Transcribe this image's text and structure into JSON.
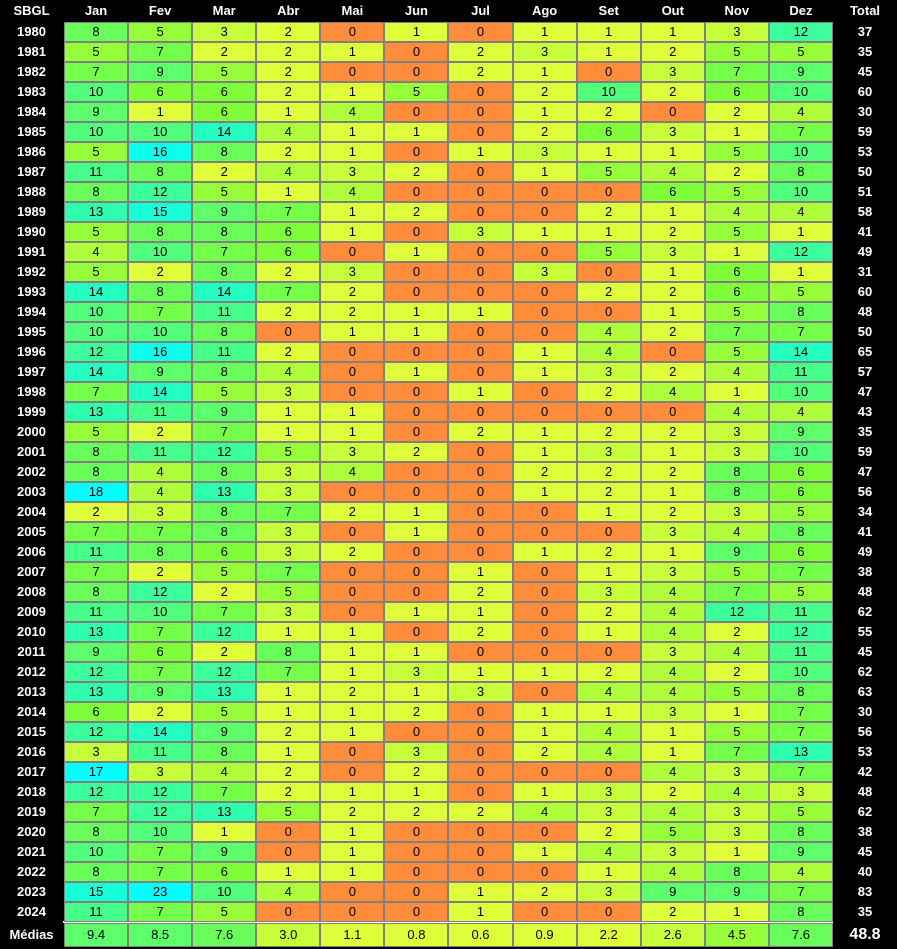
{
  "chart_data": {
    "type": "heatmap",
    "corner_label": "SBGL",
    "months": [
      "Jan",
      "Fev",
      "Mar",
      "Abr",
      "Mai",
      "Jun",
      "Jul",
      "Ago",
      "Set",
      "Out",
      "Nov",
      "Dez"
    ],
    "total_label": "Total",
    "years": [
      "1980",
      "1981",
      "1982",
      "1983",
      "1984",
      "1985",
      "1986",
      "1987",
      "1988",
      "1989",
      "1990",
      "1991",
      "1992",
      "1993",
      "1994",
      "1995",
      "1996",
      "1997",
      "1998",
      "1999",
      "2000",
      "2001",
      "2002",
      "2003",
      "2004",
      "2005",
      "2006",
      "2007",
      "2008",
      "2009",
      "2010",
      "2011",
      "2012",
      "2013",
      "2014",
      "2015",
      "2016",
      "2017",
      "2018",
      "2019",
      "2020",
      "2021",
      "2022",
      "2023",
      "2024"
    ],
    "values": [
      [
        8,
        5,
        3,
        2,
        0,
        1,
        0,
        1,
        1,
        1,
        3,
        12
      ],
      [
        5,
        7,
        2,
        2,
        1,
        0,
        2,
        3,
        1,
        2,
        5,
        5
      ],
      [
        7,
        9,
        5,
        2,
        0,
        0,
        2,
        1,
        0,
        3,
        7,
        9
      ],
      [
        10,
        6,
        6,
        2,
        1,
        5,
        0,
        2,
        10,
        2,
        6,
        10
      ],
      [
        9,
        1,
        6,
        1,
        4,
        0,
        0,
        1,
        2,
        0,
        2,
        4
      ],
      [
        10,
        10,
        14,
        4,
        1,
        1,
        0,
        2,
        6,
        3,
        1,
        7
      ],
      [
        5,
        16,
        8,
        2,
        1,
        0,
        1,
        3,
        1,
        1,
        5,
        10
      ],
      [
        11,
        8,
        2,
        4,
        3,
        2,
        0,
        1,
        5,
        4,
        2,
        8
      ],
      [
        8,
        12,
        5,
        1,
        4,
        0,
        0,
        0,
        0,
        6,
        5,
        10
      ],
      [
        13,
        15,
        9,
        7,
        1,
        2,
        0,
        0,
        2,
        1,
        4,
        4
      ],
      [
        5,
        8,
        8,
        6,
        1,
        0,
        3,
        1,
        1,
        2,
        5,
        1
      ],
      [
        4,
        10,
        7,
        6,
        0,
        1,
        0,
        0,
        5,
        3,
        1,
        12
      ],
      [
        5,
        2,
        8,
        2,
        3,
        0,
        0,
        3,
        0,
        1,
        6,
        1
      ],
      [
        14,
        8,
        14,
        7,
        2,
        0,
        0,
        0,
        2,
        2,
        6,
        5
      ],
      [
        10,
        7,
        11,
        2,
        2,
        1,
        1,
        0,
        0,
        1,
        5,
        8
      ],
      [
        10,
        10,
        8,
        0,
        1,
        1,
        0,
        0,
        4,
        2,
        7,
        7
      ],
      [
        12,
        16,
        11,
        2,
        0,
        0,
        0,
        1,
        4,
        0,
        5,
        14
      ],
      [
        14,
        9,
        8,
        4,
        0,
        1,
        0,
        1,
        3,
        2,
        4,
        11
      ],
      [
        7,
        14,
        5,
        3,
        0,
        0,
        1,
        0,
        2,
        4,
        1,
        10
      ],
      [
        13,
        11,
        9,
        1,
        1,
        0,
        0,
        0,
        0,
        0,
        4,
        4
      ],
      [
        5,
        2,
        7,
        1,
        1,
        0,
        2,
        1,
        2,
        2,
        3,
        9
      ],
      [
        8,
        11,
        12,
        5,
        3,
        2,
        0,
        1,
        3,
        1,
        3,
        10
      ],
      [
        8,
        4,
        8,
        3,
        4,
        0,
        0,
        2,
        2,
        2,
        8,
        6
      ],
      [
        18,
        4,
        13,
        3,
        0,
        0,
        0,
        1,
        2,
        1,
        8,
        6
      ],
      [
        2,
        3,
        8,
        7,
        2,
        1,
        0,
        0,
        1,
        2,
        3,
        5
      ],
      [
        7,
        7,
        8,
        3,
        0,
        1,
        0,
        0,
        0,
        3,
        4,
        8
      ],
      [
        11,
        8,
        6,
        3,
        2,
        0,
        0,
        1,
        2,
        1,
        9,
        6
      ],
      [
        7,
        2,
        5,
        7,
        0,
        0,
        1,
        0,
        1,
        3,
        5,
        7
      ],
      [
        8,
        12,
        2,
        5,
        0,
        0,
        2,
        0,
        3,
        4,
        7,
        5
      ],
      [
        11,
        10,
        7,
        3,
        0,
        1,
        1,
        0,
        2,
        4,
        12,
        11
      ],
      [
        13,
        7,
        12,
        1,
        1,
        0,
        2,
        0,
        1,
        4,
        2,
        12
      ],
      [
        9,
        6,
        2,
        8,
        1,
        1,
        0,
        0,
        0,
        3,
        4,
        11
      ],
      [
        12,
        7,
        12,
        7,
        1,
        3,
        1,
        1,
        2,
        4,
        2,
        10
      ],
      [
        13,
        9,
        13,
        1,
        2,
        1,
        3,
        0,
        4,
        4,
        5,
        8
      ],
      [
        6,
        2,
        5,
        1,
        1,
        2,
        0,
        1,
        1,
        3,
        1,
        7
      ],
      [
        12,
        14,
        9,
        2,
        1,
        0,
        0,
        1,
        4,
        1,
        5,
        7
      ],
      [
        3,
        11,
        8,
        1,
        0,
        3,
        0,
        2,
        4,
        1,
        7,
        13
      ],
      [
        17,
        3,
        4,
        2,
        0,
        2,
        0,
        0,
        0,
        4,
        3,
        7
      ],
      [
        12,
        12,
        7,
        2,
        1,
        1,
        0,
        1,
        3,
        2,
        4,
        3
      ],
      [
        7,
        12,
        13,
        5,
        2,
        2,
        2,
        4,
        3,
        4,
        3,
        5
      ],
      [
        8,
        10,
        1,
        0,
        1,
        0,
        0,
        0,
        2,
        5,
        3,
        8
      ],
      [
        10,
        7,
        9,
        0,
        1,
        0,
        0,
        1,
        4,
        3,
        1,
        9
      ],
      [
        8,
        7,
        6,
        1,
        1,
        0,
        0,
        0,
        1,
        4,
        8,
        4
      ],
      [
        15,
        23,
        10,
        4,
        0,
        0,
        1,
        2,
        3,
        9,
        9,
        7
      ],
      [
        11,
        7,
        5,
        0,
        0,
        0,
        1,
        0,
        0,
        2,
        1,
        8
      ]
    ],
    "totals": [
      "37",
      "35",
      "45",
      "60",
      "30",
      "59",
      "53",
      "50",
      "51",
      "58",
      "41",
      "49",
      "31",
      "60",
      "48",
      "50",
      "65",
      "57",
      "47",
      "43",
      "35",
      "59",
      "47",
      "56",
      "34",
      "41",
      "49",
      "38",
      "48",
      "62",
      "55",
      "45",
      "62",
      "63",
      "30",
      "56",
      "53",
      "42",
      "48",
      "62",
      "38",
      "45",
      "40",
      "83",
      "35"
    ],
    "averages_label": "Médias",
    "averages": [
      "9.4",
      "8.5",
      "7.6",
      "3.0",
      "1.1",
      "0.8",
      "0.6",
      "0.9",
      "2.2",
      "2.6",
      "4.5",
      "7.6"
    ],
    "grand_average": "48.8",
    "color_scale": [
      "#ff8c3a",
      "#dfff3a",
      "#7fff3a",
      "#3aff9a",
      "#00ffff"
    ]
  }
}
